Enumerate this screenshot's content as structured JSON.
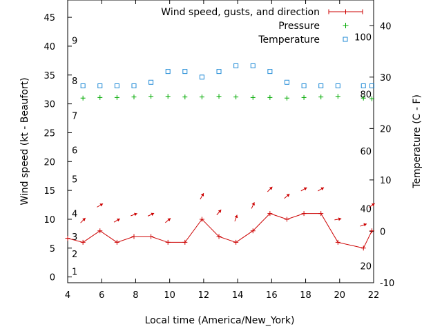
{
  "chart_data": {
    "type": "line",
    "xlabel": "Local time (America/New_York)",
    "ylabel_left": "Wind speed (kt - Beaufort)",
    "ylabel_right": "Temperature (C - F)",
    "xlim": [
      4,
      22
    ],
    "ylim_left": [
      -1,
      48
    ],
    "ylim_right": [
      -10,
      45
    ],
    "x_ticks": [
      4,
      6,
      8,
      10,
      12,
      14,
      16,
      18,
      20,
      22
    ],
    "y_left_ticks": [
      0,
      5,
      10,
      15,
      20,
      25,
      30,
      35,
      40,
      45
    ],
    "y_right_ticks": [
      -10,
      0,
      10,
      20,
      30,
      40
    ],
    "beaufort_labels": [
      {
        "value": 1,
        "y": 1
      },
      {
        "value": 2,
        "y": 4
      },
      {
        "value": 3,
        "y": 7
      },
      {
        "value": 4,
        "y": 11
      },
      {
        "value": 5,
        "y": 17
      },
      {
        "value": 6,
        "y": 22
      },
      {
        "value": 7,
        "y": 28
      },
      {
        "value": 8,
        "y": 34
      },
      {
        "value": 9,
        "y": 41
      }
    ],
    "fahrenheit_labels": [
      {
        "value": 20,
        "celsius": -6.7
      },
      {
        "value": 40,
        "celsius": 4.4
      },
      {
        "value": 60,
        "celsius": 15.6
      },
      {
        "value": 80,
        "celsius": 26.7
      },
      {
        "value": 100,
        "celsius": 37.8
      }
    ],
    "legend": {
      "placement": "top-right",
      "entries": [
        "Wind speed, gusts, and direction",
        "Pressure",
        "Temperature"
      ]
    },
    "colors": {
      "wind": "#cc0000",
      "pressure": "#00aa00",
      "temperature": "#1f8ad6",
      "axis": "#000000"
    },
    "series": [
      {
        "name": "Wind speed, gusts, and direction",
        "axis": "left",
        "style": "line-with-plus",
        "points": [
          [
            4,
            6.7
          ],
          [
            4.9,
            6
          ],
          [
            5.9,
            8
          ],
          [
            6.9,
            6
          ],
          [
            7.9,
            7
          ],
          [
            8.9,
            7
          ],
          [
            9.9,
            6
          ],
          [
            10.9,
            6
          ],
          [
            11.9,
            10
          ],
          [
            12.9,
            7
          ],
          [
            13.9,
            6
          ],
          [
            14.9,
            8
          ],
          [
            15.9,
            11
          ],
          [
            16.9,
            10
          ],
          [
            17.9,
            11
          ],
          [
            18.9,
            11
          ],
          [
            19.9,
            6
          ],
          [
            21.4,
            5
          ],
          [
            21.9,
            8
          ]
        ]
      },
      {
        "name": "Pressure",
        "axis": "left",
        "style": "plus",
        "points": [
          [
            4.9,
            31
          ],
          [
            5.9,
            31.1
          ],
          [
            6.9,
            31.1
          ],
          [
            7.9,
            31.2
          ],
          [
            8.9,
            31.3
          ],
          [
            9.9,
            31.3
          ],
          [
            10.9,
            31.2
          ],
          [
            11.9,
            31.2
          ],
          [
            12.9,
            31.3
          ],
          [
            13.9,
            31.2
          ],
          [
            14.9,
            31.1
          ],
          [
            15.9,
            31.1
          ],
          [
            16.9,
            31
          ],
          [
            17.9,
            31.1
          ],
          [
            18.9,
            31.2
          ],
          [
            19.9,
            31.3
          ],
          [
            21.4,
            31
          ],
          [
            21.9,
            30.9
          ]
        ]
      },
      {
        "name": "Temperature",
        "axis": "right",
        "style": "square",
        "points": [
          [
            4.9,
            28.3
          ],
          [
            5.9,
            28.3
          ],
          [
            6.9,
            28.3
          ],
          [
            7.9,
            28.3
          ],
          [
            8.9,
            29
          ],
          [
            9.9,
            31.1
          ],
          [
            10.9,
            31.1
          ],
          [
            11.9,
            30
          ],
          [
            12.9,
            31.1
          ],
          [
            13.9,
            32.2
          ],
          [
            14.9,
            32.2
          ],
          [
            15.9,
            31.1
          ],
          [
            16.9,
            29
          ],
          [
            17.9,
            28.3
          ],
          [
            18.9,
            28.3
          ],
          [
            19.9,
            28.3
          ],
          [
            21.4,
            28.3
          ],
          [
            21.9,
            28.3
          ]
        ]
      }
    ],
    "wind_arrows": {
      "description": "direction arrows drawn above each wind sample",
      "points": [
        {
          "x": 4.9,
          "y": 9.8,
          "angle": -45
        },
        {
          "x": 5.9,
          "y": 12.4,
          "angle": -30
        },
        {
          "x": 6.9,
          "y": 9.8,
          "angle": -30
        },
        {
          "x": 7.9,
          "y": 10.8,
          "angle": -20
        },
        {
          "x": 8.9,
          "y": 10.8,
          "angle": -25
        },
        {
          "x": 9.9,
          "y": 9.8,
          "angle": -40
        },
        {
          "x": 11.9,
          "y": 14,
          "angle": -60
        },
        {
          "x": 12.9,
          "y": 11.2,
          "angle": -50
        },
        {
          "x": 13.9,
          "y": 10.2,
          "angle": -70
        },
        {
          "x": 14.9,
          "y": 12.4,
          "angle": -65
        },
        {
          "x": 15.9,
          "y": 15.2,
          "angle": -45
        },
        {
          "x": 16.9,
          "y": 14,
          "angle": -40
        },
        {
          "x": 17.9,
          "y": 15.2,
          "angle": -30
        },
        {
          "x": 18.9,
          "y": 15.2,
          "angle": -30
        },
        {
          "x": 19.9,
          "y": 10,
          "angle": -10
        },
        {
          "x": 21.4,
          "y": 9,
          "angle": -20
        },
        {
          "x": 21.9,
          "y": 12.4,
          "angle": -35
        }
      ]
    }
  }
}
